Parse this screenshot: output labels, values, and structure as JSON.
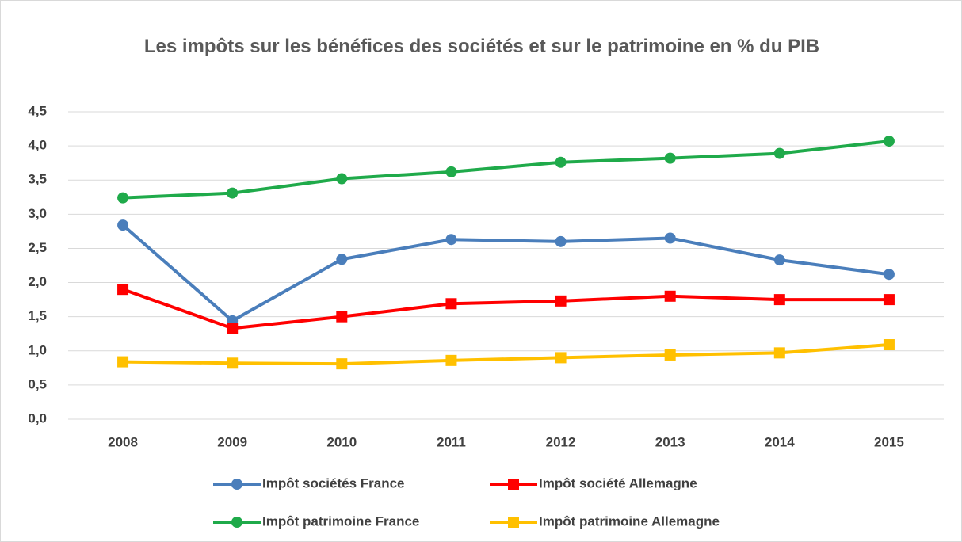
{
  "chart_data": {
    "type": "line",
    "title": "Les impôts sur les bénéfices des sociétés et sur le patrimoine en % du PIB",
    "categories": [
      "2008",
      "2009",
      "2010",
      "2011",
      "2012",
      "2013",
      "2014",
      "2015"
    ],
    "series": [
      {
        "name": "Impôt sociétés France",
        "color": "#4a7ebb",
        "marker": "circle",
        "values": [
          2.84,
          1.44,
          2.34,
          2.63,
          2.6,
          2.65,
          2.33,
          2.12
        ]
      },
      {
        "name": "Impôt société Allemagne",
        "color": "#ff0000",
        "marker": "square",
        "values": [
          1.9,
          1.33,
          1.5,
          1.69,
          1.73,
          1.8,
          1.75,
          1.75
        ]
      },
      {
        "name": "Impôt patrimoine France",
        "color": "#1faa4a",
        "marker": "circle",
        "values": [
          3.24,
          3.31,
          3.52,
          3.62,
          3.76,
          3.82,
          3.89,
          4.07
        ]
      },
      {
        "name": "Impôt patrimoine Allemagne",
        "color": "#ffc000",
        "marker": "square",
        "values": [
          0.84,
          0.82,
          0.81,
          0.86,
          0.9,
          0.94,
          0.97,
          1.09
        ]
      }
    ],
    "ylim": [
      0,
      4.5
    ],
    "yticks": [
      {
        "value": 0,
        "label": "0,0"
      },
      {
        "value": 0.5,
        "label": "0,5"
      },
      {
        "value": 1,
        "label": "1,0"
      },
      {
        "value": 1.5,
        "label": "1,5"
      },
      {
        "value": 2,
        "label": "2,0"
      },
      {
        "value": 2.5,
        "label": "2,5"
      },
      {
        "value": 3,
        "label": "3,0"
      },
      {
        "value": 3.5,
        "label": "3,5"
      },
      {
        "value": 4,
        "label": "4,0"
      },
      {
        "value": 4.5,
        "label": "4,5"
      }
    ],
    "grid": true,
    "legend": "bottom"
  }
}
